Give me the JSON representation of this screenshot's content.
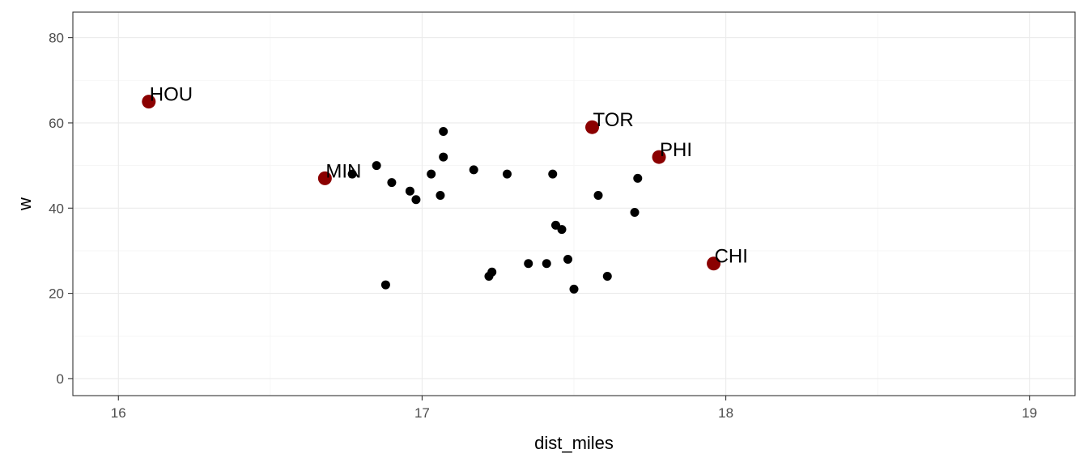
{
  "chart_data": {
    "type": "scatter",
    "title": "",
    "xlabel": "dist_miles",
    "ylabel": "w",
    "xlim": [
      15.85,
      19.15
    ],
    "ylim": [
      -4,
      86
    ],
    "x_ticks": [
      16,
      17,
      18,
      19
    ],
    "y_ticks": [
      0,
      20,
      40,
      60,
      80
    ],
    "x_tick_labels": [
      "16",
      "17",
      "18",
      "19"
    ],
    "y_tick_labels": [
      "0",
      "20",
      "40",
      "60",
      "80"
    ],
    "grid": true,
    "colors": {
      "point": "#000000",
      "highlight": "#8b0000"
    },
    "series": [
      {
        "points": [
          {
            "x": 16.77,
            "y": 48
          },
          {
            "x": 16.85,
            "y": 50
          },
          {
            "x": 16.88,
            "y": 22
          },
          {
            "x": 16.9,
            "y": 46
          },
          {
            "x": 16.96,
            "y": 44
          },
          {
            "x": 16.98,
            "y": 42
          },
          {
            "x": 17.03,
            "y": 48
          },
          {
            "x": 17.06,
            "y": 43
          },
          {
            "x": 17.07,
            "y": 58
          },
          {
            "x": 17.07,
            "y": 52
          },
          {
            "x": 17.17,
            "y": 49
          },
          {
            "x": 17.22,
            "y": 24
          },
          {
            "x": 17.23,
            "y": 25
          },
          {
            "x": 17.28,
            "y": 48
          },
          {
            "x": 17.35,
            "y": 27
          },
          {
            "x": 17.41,
            "y": 27
          },
          {
            "x": 17.43,
            "y": 48
          },
          {
            "x": 17.44,
            "y": 36
          },
          {
            "x": 17.46,
            "y": 35
          },
          {
            "x": 17.48,
            "y": 28
          },
          {
            "x": 17.5,
            "y": 21
          },
          {
            "x": 17.58,
            "y": 43
          },
          {
            "x": 17.61,
            "y": 24
          },
          {
            "x": 17.7,
            "y": 39
          },
          {
            "x": 17.71,
            "y": 47
          }
        ]
      },
      {
        "highlight": true,
        "points": [
          {
            "x": 16.1,
            "y": 65,
            "label": "HOU"
          },
          {
            "x": 16.68,
            "y": 47,
            "label": "MIN"
          },
          {
            "x": 17.56,
            "y": 59,
            "label": "TOR"
          },
          {
            "x": 17.78,
            "y": 52,
            "label": "PHI"
          },
          {
            "x": 17.96,
            "y": 27,
            "label": "CHI"
          }
        ]
      }
    ]
  }
}
